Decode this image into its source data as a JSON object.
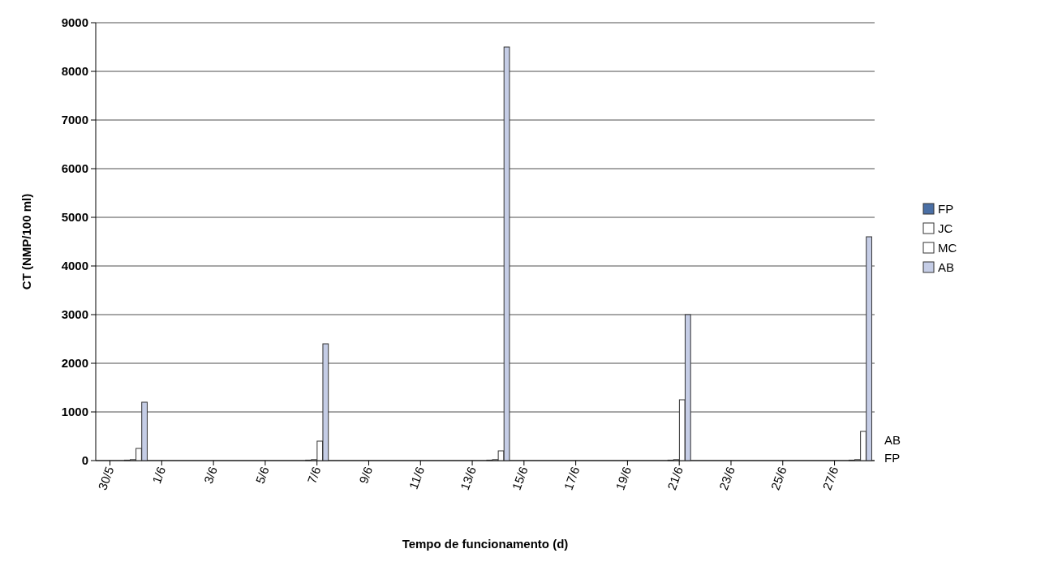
{
  "chart_data": {
    "type": "bar",
    "xlabel": "Tempo de funcionamento (d)",
    "ylabel": "CT (NMP/100 ml)",
    "categories": [
      "30/5",
      null,
      "1/6",
      null,
      "3/6",
      null,
      "5/6",
      null,
      "7/6",
      null,
      "9/6",
      null,
      "11/6",
      null,
      "13/6",
      null,
      "15/6",
      null,
      "17/6",
      null,
      "19/6",
      null,
      "21/6",
      null,
      "23/6",
      null,
      "25/6",
      null,
      "27/6",
      null
    ],
    "series": [
      {
        "name": "FP",
        "color": "#4a6fa5",
        "values": [
          null,
          10,
          null,
          null,
          null,
          null,
          null,
          null,
          10,
          null,
          null,
          null,
          null,
          null,
          null,
          10,
          null,
          null,
          null,
          null,
          null,
          null,
          10,
          null,
          null,
          null,
          null,
          null,
          null,
          10
        ]
      },
      {
        "name": "JC",
        "color": "#ffffff",
        "values": [
          null,
          20,
          null,
          null,
          null,
          null,
          null,
          null,
          20,
          null,
          null,
          null,
          null,
          null,
          null,
          20,
          null,
          null,
          null,
          null,
          null,
          null,
          20,
          null,
          null,
          null,
          null,
          null,
          null,
          20
        ]
      },
      {
        "name": "MC",
        "color": "#ffffff",
        "values": [
          null,
          250,
          null,
          null,
          null,
          null,
          null,
          null,
          400,
          null,
          null,
          null,
          null,
          null,
          null,
          200,
          null,
          null,
          null,
          null,
          null,
          null,
          1250,
          null,
          null,
          null,
          null,
          null,
          null,
          600
        ]
      },
      {
        "name": "AB",
        "color": "#c5cde6",
        "values": [
          null,
          1200,
          null,
          null,
          null,
          null,
          null,
          null,
          2400,
          null,
          null,
          null,
          null,
          null,
          null,
          8500,
          null,
          null,
          null,
          null,
          null,
          null,
          3000,
          null,
          null,
          null,
          null,
          null,
          null,
          4600
        ]
      }
    ],
    "ylim": [
      0,
      9000
    ],
    "yticks": [
      0,
      1000,
      2000,
      3000,
      4000,
      5000,
      6000,
      7000,
      8000,
      9000
    ],
    "grid": "y",
    "legend": "right",
    "annotations": [
      "AB",
      "FP"
    ]
  }
}
